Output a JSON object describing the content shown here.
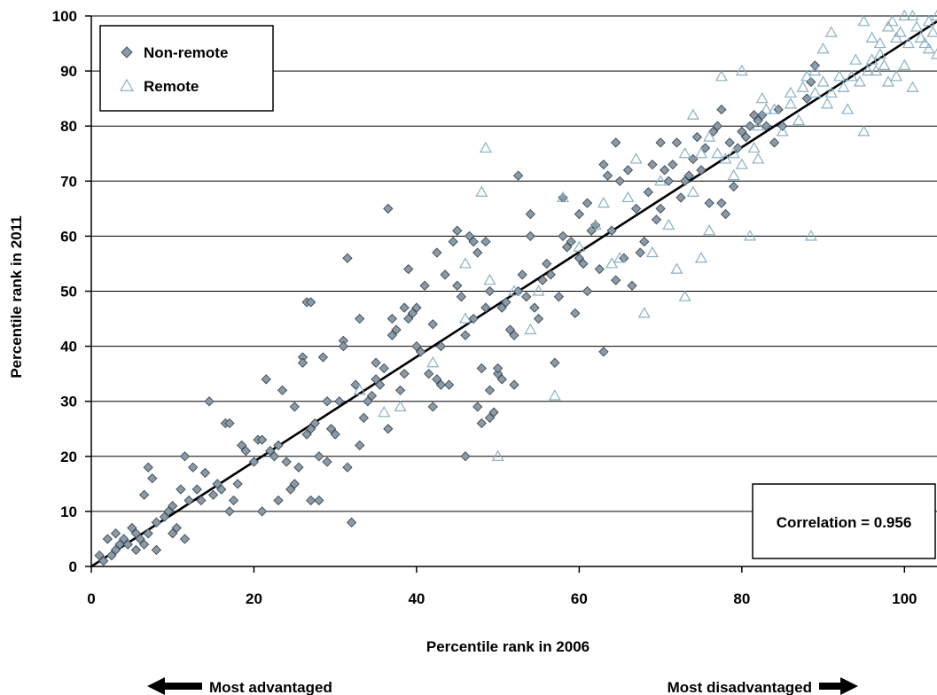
{
  "chart_data": {
    "type": "scatter",
    "xlabel": "Percentile rank in 2006",
    "ylabel": "Percentile rank in 2011",
    "xlim": [
      0,
      104
    ],
    "ylim": [
      0,
      100
    ],
    "x_ticks": [
      0,
      20,
      40,
      60,
      80,
      100
    ],
    "y_ticks": [
      0,
      10,
      20,
      30,
      40,
      50,
      60,
      70,
      80,
      90,
      100
    ],
    "x_tick_labels": [
      "0",
      "20",
      "40",
      "60",
      "80",
      "100"
    ],
    "y_tick_labels": [
      "0",
      "10",
      "20",
      "30",
      "40",
      "50",
      "60",
      "70",
      "80",
      "90",
      "100"
    ],
    "grid": "horizontal",
    "legend_position": "top-left",
    "annotation": "Correlation = 0.956",
    "footer_left": "Most advantaged",
    "footer_right": "Most disadvantaged",
    "trendline": {
      "x": [
        0,
        104
      ],
      "y": [
        0,
        99
      ]
    },
    "colors": {
      "non_remote_fill": "#8a9aa6",
      "non_remote_stroke": "#3c4a55",
      "remote_stroke": "#8ab0c4",
      "trendline": "#000000",
      "grid": "#000000"
    },
    "series": [
      {
        "name": "Non-remote",
        "marker": "diamond",
        "points": [
          [
            1,
            2
          ],
          [
            1.5,
            1
          ],
          [
            2,
            5
          ],
          [
            2.5,
            2
          ],
          [
            3,
            3
          ],
          [
            3,
            6
          ],
          [
            3.5,
            4
          ],
          [
            4,
            5
          ],
          [
            4.5,
            4
          ],
          [
            5,
            7
          ],
          [
            5.5,
            3
          ],
          [
            5.5,
            6
          ],
          [
            6,
            5
          ],
          [
            6.5,
            13
          ],
          [
            6.5,
            4
          ],
          [
            7,
            6
          ],
          [
            7,
            18
          ],
          [
            7.5,
            16
          ],
          [
            8,
            8
          ],
          [
            8,
            3
          ],
          [
            9,
            9
          ],
          [
            9.5,
            10
          ],
          [
            10,
            11
          ],
          [
            10,
            6
          ],
          [
            10.5,
            7
          ],
          [
            11,
            14
          ],
          [
            11.5,
            20
          ],
          [
            11.5,
            5
          ],
          [
            12,
            12
          ],
          [
            12.5,
            18
          ],
          [
            13,
            14
          ],
          [
            13.5,
            12
          ],
          [
            14,
            17
          ],
          [
            14.5,
            30
          ],
          [
            15,
            13
          ],
          [
            15.5,
            15
          ],
          [
            16,
            14
          ],
          [
            16.5,
            26
          ],
          [
            17,
            10
          ],
          [
            17,
            26
          ],
          [
            17.5,
            12
          ],
          [
            18,
            15
          ],
          [
            18.5,
            22
          ],
          [
            19,
            21
          ],
          [
            20,
            19
          ],
          [
            20.5,
            23
          ],
          [
            21,
            23
          ],
          [
            21,
            10
          ],
          [
            21.5,
            34
          ],
          [
            22,
            21
          ],
          [
            22.5,
            20
          ],
          [
            23,
            12
          ],
          [
            23,
            22
          ],
          [
            23.5,
            32
          ],
          [
            24,
            19
          ],
          [
            24.5,
            14
          ],
          [
            25,
            15
          ],
          [
            25,
            29
          ],
          [
            25.5,
            18
          ],
          [
            26,
            38
          ],
          [
            26,
            37
          ],
          [
            26.5,
            48
          ],
          [
            26.5,
            24
          ],
          [
            27,
            48
          ],
          [
            27,
            25
          ],
          [
            27,
            12
          ],
          [
            27.5,
            26
          ],
          [
            28,
            12
          ],
          [
            28,
            20
          ],
          [
            28.5,
            38
          ],
          [
            29,
            19
          ],
          [
            29,
            30
          ],
          [
            29.5,
            25
          ],
          [
            30,
            24
          ],
          [
            30.5,
            30
          ],
          [
            31,
            41
          ],
          [
            31,
            40
          ],
          [
            31.5,
            56
          ],
          [
            31.5,
            18
          ],
          [
            32,
            8
          ],
          [
            32.5,
            33
          ],
          [
            33,
            22
          ],
          [
            33,
            45
          ],
          [
            33.5,
            27
          ],
          [
            34,
            30
          ],
          [
            34.5,
            31
          ],
          [
            35,
            37
          ],
          [
            35,
            34
          ],
          [
            35.5,
            33
          ],
          [
            36,
            36
          ],
          [
            36.5,
            25
          ],
          [
            36.5,
            65
          ],
          [
            37,
            42
          ],
          [
            37,
            45
          ],
          [
            37.5,
            43
          ],
          [
            38,
            32
          ],
          [
            38.5,
            35
          ],
          [
            38.5,
            47
          ],
          [
            39,
            54
          ],
          [
            39,
            45
          ],
          [
            39.5,
            46
          ],
          [
            40,
            40
          ],
          [
            40,
            47
          ],
          [
            40.5,
            39
          ],
          [
            41,
            51
          ],
          [
            41.5,
            35
          ],
          [
            42,
            29
          ],
          [
            42,
            44
          ],
          [
            42.5,
            57
          ],
          [
            42.5,
            34
          ],
          [
            43,
            33
          ],
          [
            43,
            40
          ],
          [
            43.5,
            53
          ],
          [
            44,
            33
          ],
          [
            44.5,
            59
          ],
          [
            45,
            61
          ],
          [
            45,
            51
          ],
          [
            45.5,
            49
          ],
          [
            46,
            20
          ],
          [
            46,
            42
          ],
          [
            46.5,
            60
          ],
          [
            47,
            59
          ],
          [
            47,
            45
          ],
          [
            47.5,
            29
          ],
          [
            47.5,
            57
          ],
          [
            48,
            36
          ],
          [
            48,
            26
          ],
          [
            48.5,
            59
          ],
          [
            48.5,
            47
          ],
          [
            49,
            50
          ],
          [
            49,
            32
          ],
          [
            49,
            27
          ],
          [
            49.5,
            28
          ],
          [
            50,
            35
          ],
          [
            50,
            36
          ],
          [
            50.5,
            34
          ],
          [
            50.5,
            47
          ],
          [
            51,
            48
          ],
          [
            51.5,
            43
          ],
          [
            52,
            33
          ],
          [
            52,
            42
          ],
          [
            52.5,
            71
          ],
          [
            52.5,
            50
          ],
          [
            53,
            53
          ],
          [
            53.5,
            49
          ],
          [
            54,
            64
          ],
          [
            54,
            60
          ],
          [
            54.5,
            47
          ],
          [
            55,
            45
          ],
          [
            55.5,
            52
          ],
          [
            56,
            55
          ],
          [
            56.5,
            53
          ],
          [
            57,
            37
          ],
          [
            57.5,
            49
          ],
          [
            58,
            67
          ],
          [
            58,
            60
          ],
          [
            58.5,
            58
          ],
          [
            59,
            59
          ],
          [
            59.5,
            46
          ],
          [
            60,
            56
          ],
          [
            60,
            64
          ],
          [
            60.5,
            55
          ],
          [
            61,
            66
          ],
          [
            61,
            50
          ],
          [
            61.5,
            61
          ],
          [
            62,
            62
          ],
          [
            62.5,
            54
          ],
          [
            63,
            39
          ],
          [
            63,
            73
          ],
          [
            63.5,
            71
          ],
          [
            64,
            61
          ],
          [
            64.5,
            77
          ],
          [
            64.5,
            52
          ],
          [
            65,
            70
          ],
          [
            65.5,
            56
          ],
          [
            66,
            72
          ],
          [
            66.5,
            51
          ],
          [
            67,
            65
          ],
          [
            67.5,
            57
          ],
          [
            68,
            59
          ],
          [
            68.5,
            68
          ],
          [
            69,
            73
          ],
          [
            69.5,
            63
          ],
          [
            70,
            77
          ],
          [
            70,
            65
          ],
          [
            70.5,
            72
          ],
          [
            71,
            70
          ],
          [
            71.5,
            73
          ],
          [
            72,
            77
          ],
          [
            72.5,
            67
          ],
          [
            73,
            70
          ],
          [
            73.5,
            71
          ],
          [
            74,
            74
          ],
          [
            74.5,
            78
          ],
          [
            75,
            72
          ],
          [
            75.5,
            76
          ],
          [
            76,
            66
          ],
          [
            76.5,
            79
          ],
          [
            77,
            80
          ],
          [
            77.5,
            83
          ],
          [
            77.5,
            66
          ],
          [
            78,
            64
          ],
          [
            78.5,
            77
          ],
          [
            79,
            69
          ],
          [
            79.5,
            76
          ],
          [
            80,
            79
          ],
          [
            80.5,
            78
          ],
          [
            81,
            80
          ],
          [
            81.5,
            82
          ],
          [
            82,
            81
          ],
          [
            82.5,
            82
          ],
          [
            83,
            80
          ],
          [
            84,
            77
          ],
          [
            84.5,
            83
          ],
          [
            85,
            80
          ],
          [
            88,
            85
          ],
          [
            88.5,
            88
          ],
          [
            89,
            91
          ]
        ]
      },
      {
        "name": "Remote",
        "marker": "triangle-open",
        "points": [
          [
            33,
            32
          ],
          [
            36,
            28
          ],
          [
            38,
            29
          ],
          [
            42,
            37
          ],
          [
            46,
            45
          ],
          [
            46,
            55
          ],
          [
            48,
            68
          ],
          [
            48.5,
            76
          ],
          [
            49,
            52
          ],
          [
            50,
            20
          ],
          [
            52,
            50
          ],
          [
            54,
            43
          ],
          [
            55,
            50
          ],
          [
            57,
            31
          ],
          [
            58,
            67
          ],
          [
            60,
            58
          ],
          [
            62,
            62
          ],
          [
            63,
            66
          ],
          [
            64,
            55
          ],
          [
            65,
            56
          ],
          [
            66,
            67
          ],
          [
            67,
            74
          ],
          [
            68,
            46
          ],
          [
            69,
            57
          ],
          [
            70,
            70
          ],
          [
            71,
            62
          ],
          [
            72,
            54
          ],
          [
            73,
            49
          ],
          [
            73,
            75
          ],
          [
            74,
            68
          ],
          [
            74,
            82
          ],
          [
            75,
            56
          ],
          [
            75,
            75
          ],
          [
            76,
            61
          ],
          [
            76,
            78
          ],
          [
            77,
            75
          ],
          [
            77.5,
            89
          ],
          [
            78,
            74
          ],
          [
            79,
            71
          ],
          [
            79,
            75
          ],
          [
            80,
            73
          ],
          [
            80,
            90
          ],
          [
            81,
            60
          ],
          [
            81.5,
            76
          ],
          [
            82,
            80
          ],
          [
            82,
            74
          ],
          [
            82.5,
            85
          ],
          [
            83,
            83
          ],
          [
            84,
            83
          ],
          [
            85,
            79
          ],
          [
            86,
            86
          ],
          [
            86,
            84
          ],
          [
            87,
            81
          ],
          [
            87.5,
            87
          ],
          [
            88,
            89
          ],
          [
            88.5,
            60
          ],
          [
            89,
            86
          ],
          [
            89,
            90
          ],
          [
            90,
            88
          ],
          [
            90,
            94
          ],
          [
            90.5,
            84
          ],
          [
            91,
            86
          ],
          [
            91,
            97
          ],
          [
            92,
            89
          ],
          [
            92.5,
            87
          ],
          [
            93,
            83
          ],
          [
            93.5,
            89
          ],
          [
            94,
            92
          ],
          [
            94.5,
            88
          ],
          [
            95,
            79
          ],
          [
            95,
            99
          ],
          [
            95.5,
            90
          ],
          [
            96,
            92
          ],
          [
            96,
            96
          ],
          [
            96.5,
            90
          ],
          [
            97,
            93
          ],
          [
            97,
            95
          ],
          [
            97.5,
            91
          ],
          [
            98,
            88
          ],
          [
            98,
            98
          ],
          [
            98.5,
            99
          ],
          [
            99,
            89
          ],
          [
            99,
            96
          ],
          [
            99.5,
            97
          ],
          [
            100,
            91
          ],
          [
            100,
            100
          ],
          [
            100.5,
            95
          ],
          [
            101,
            87
          ],
          [
            101,
            100
          ],
          [
            101.5,
            98
          ],
          [
            102,
            96
          ],
          [
            102.5,
            95
          ],
          [
            103,
            94
          ],
          [
            103,
            99
          ],
          [
            103.5,
            97
          ],
          [
            104,
            93
          ],
          [
            104,
            100
          ]
        ]
      }
    ]
  }
}
